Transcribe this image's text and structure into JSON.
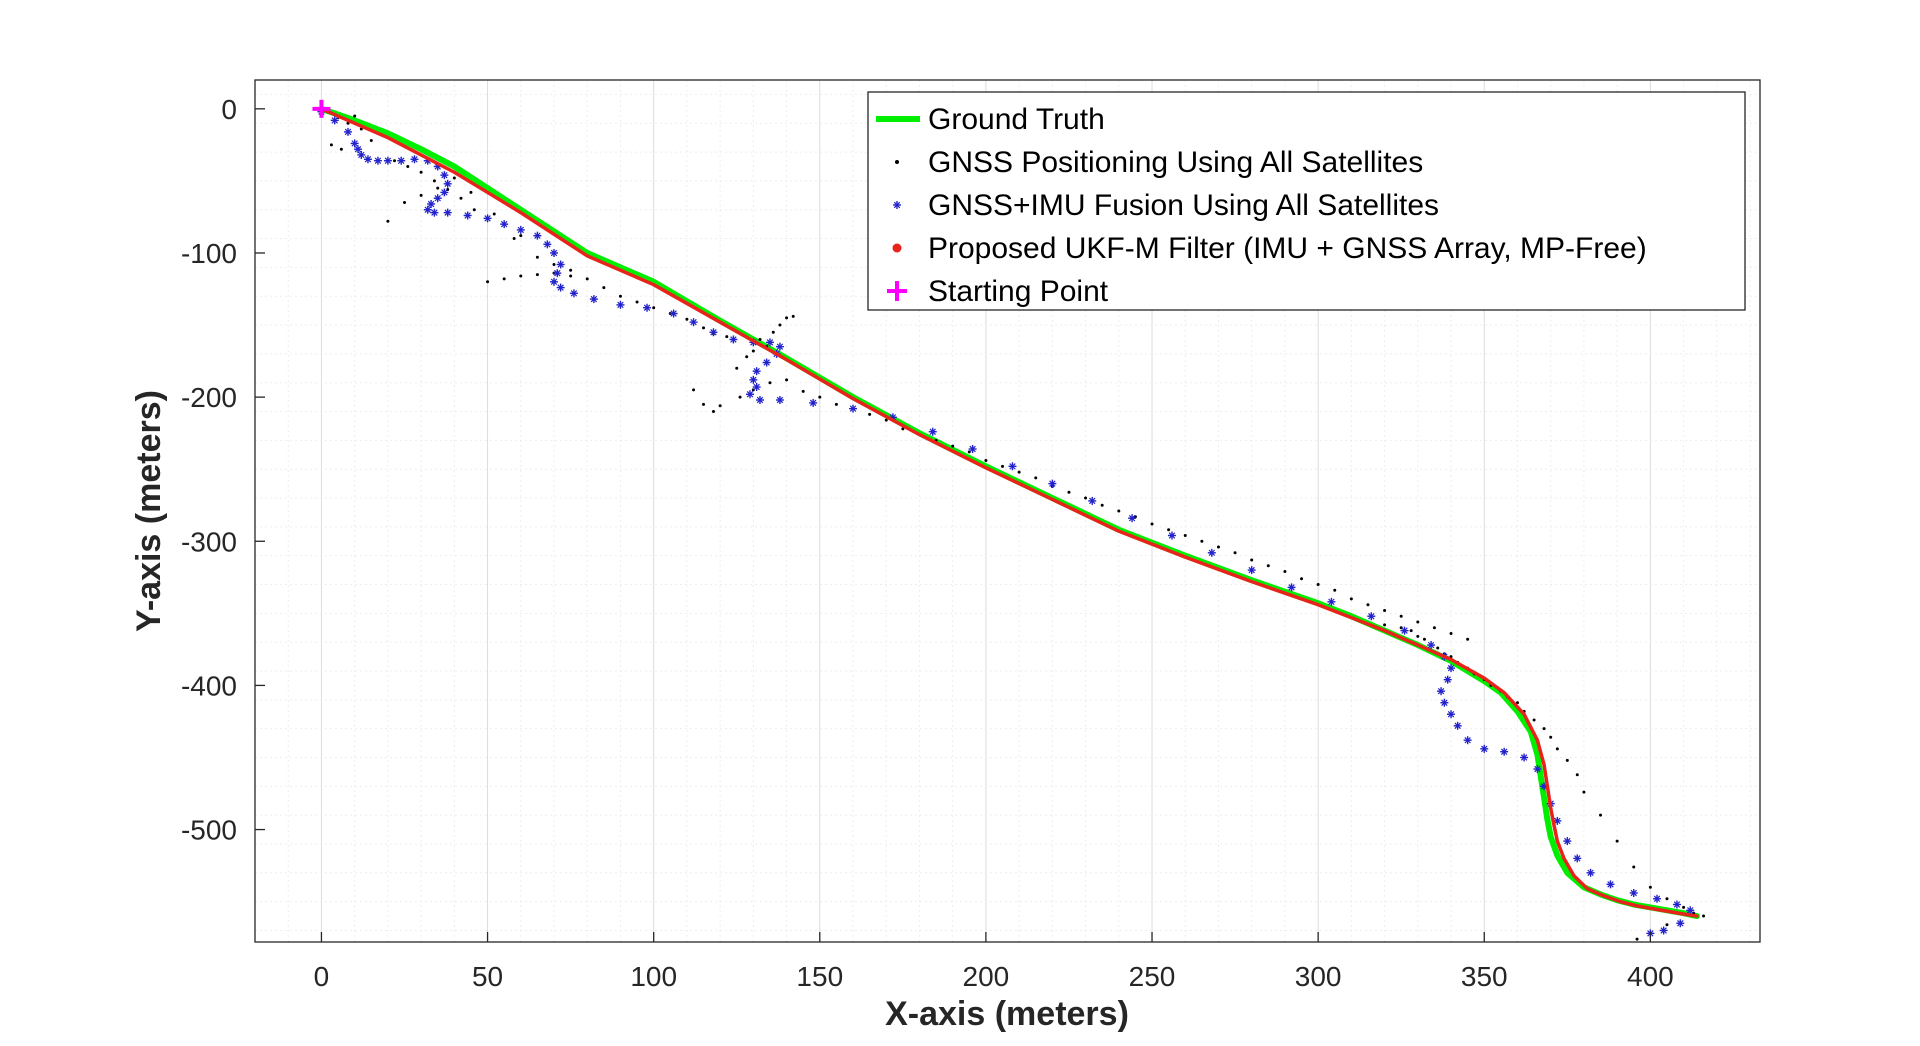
{
  "chart_data": {
    "type": "scatter",
    "title": "",
    "xlabel": "X-axis (meters)",
    "ylabel": "Y-axis (meters)",
    "xlim": [
      -20,
      433
    ],
    "ylim": [
      -578,
      20
    ],
    "xticks": [
      0,
      50,
      100,
      150,
      200,
      250,
      300,
      350,
      400
    ],
    "yticks": [
      0,
      -100,
      -200,
      -300,
      -400,
      -500
    ],
    "xtick_labels": [
      "0",
      "50",
      "100",
      "150",
      "200",
      "250",
      "300",
      "350",
      "400"
    ],
    "ytick_labels": [
      "0",
      "-100",
      "-200",
      "-300",
      "-400",
      "-500"
    ],
    "grid": true,
    "minor_grid": true,
    "legend_position": "top-right",
    "series": [
      {
        "name": "Ground Truth",
        "style": "line",
        "color": "#00ee00",
        "x": [
          0,
          10,
          20,
          30,
          40,
          50,
          60,
          70,
          80,
          100,
          120,
          140,
          160,
          180,
          200,
          220,
          240,
          260,
          280,
          300,
          310,
          320,
          330,
          340,
          350,
          355,
          360,
          364,
          366,
          367,
          368,
          369,
          370,
          372,
          375,
          380,
          385,
          390,
          395,
          400,
          405,
          410,
          414
        ],
        "y": [
          0,
          -8,
          -17,
          -28,
          -40,
          -55,
          -70,
          -85,
          -100,
          -120,
          -147,
          -173,
          -200,
          -225,
          -248,
          -270,
          -292,
          -310,
          -327,
          -343,
          -352,
          -362,
          -372,
          -383,
          -397,
          -405,
          -418,
          -432,
          -448,
          -463,
          -478,
          -493,
          -505,
          -518,
          -530,
          -540,
          -545,
          -549,
          -552,
          -554,
          -556,
          -558,
          -560
        ]
      },
      {
        "name": "GNSS Positioning Using All Satellites",
        "style": "dot",
        "color": "#000000",
        "x": [
          2,
          5,
          8,
          10,
          12,
          15,
          18,
          3,
          6,
          22,
          26,
          30,
          34,
          38,
          42,
          46,
          50,
          55,
          60,
          20,
          25,
          30,
          35,
          40,
          45,
          52,
          58,
          65,
          70,
          75,
          80,
          85,
          90,
          95,
          100,
          105,
          110,
          115,
          118,
          122,
          50,
          55,
          60,
          65,
          70,
          75,
          125,
          128,
          130,
          132,
          134,
          136,
          138,
          140,
          142,
          112,
          115,
          118,
          120,
          126,
          130,
          135,
          140,
          145,
          150,
          155,
          160,
          165,
          170,
          175,
          180,
          185,
          190,
          195,
          200,
          205,
          210,
          215,
          220,
          225,
          230,
          235,
          240,
          245,
          250,
          255,
          260,
          265,
          270,
          275,
          280,
          285,
          290,
          295,
          300,
          305,
          310,
          315,
          320,
          325,
          330,
          335,
          340,
          345,
          320,
          325,
          328,
          330,
          332,
          334,
          336,
          338,
          340,
          342,
          345,
          347,
          350,
          352,
          355,
          357,
          360,
          362,
          365,
          368,
          370,
          372,
          375,
          378,
          380,
          385,
          390,
          395,
          400,
          405,
          410,
          413,
          416,
          396,
          400,
          405
        ],
        "y": [
          -2,
          -6,
          -10,
          -5,
          -14,
          -22,
          -18,
          -25,
          -28,
          -36,
          -40,
          -44,
          -50,
          -56,
          -62,
          -70,
          -76,
          -80,
          -88,
          -78,
          -65,
          -60,
          -55,
          -48,
          -58,
          -73,
          -90,
          -103,
          -108,
          -112,
          -118,
          -124,
          -130,
          -134,
          -138,
          -142,
          -146,
          -152,
          -156,
          -158,
          -120,
          -118,
          -116,
          -115,
          -114,
          -116,
          -180,
          -172,
          -168,
          -160,
          -165,
          -155,
          -150,
          -145,
          -144,
          -195,
          -205,
          -210,
          -206,
          -200,
          -195,
          -190,
          -188,
          -196,
          -200,
          -205,
          -208,
          -212,
          -216,
          -222,
          -226,
          -230,
          -234,
          -238,
          -244,
          -248,
          -252,
          -256,
          -262,
          -266,
          -270,
          -275,
          -279,
          -283,
          -288,
          -292,
          -296,
          -300,
          -304,
          -308,
          -313,
          -317,
          -321,
          -326,
          -330,
          -334,
          -340,
          -344,
          -348,
          -352,
          -356,
          -360,
          -364,
          -368,
          -358,
          -360,
          -362,
          -366,
          -368,
          -372,
          -374,
          -378,
          -380,
          -384,
          -388,
          -392,
          -396,
          -400,
          -404,
          -408,
          -412,
          -418,
          -424,
          -430,
          -436,
          -444,
          -452,
          -462,
          -474,
          -490,
          -508,
          -526,
          -540,
          -548,
          -554,
          -558,
          -560,
          -576,
          -572,
          -566
        ]
      },
      {
        "name": "GNSS+IMU Fusion Using All Satellites",
        "style": "star",
        "color": "#2222cc",
        "x": [
          0,
          4,
          8,
          10,
          11,
          12,
          14,
          17,
          20,
          24,
          28,
          32,
          35,
          37,
          38,
          37,
          35,
          33,
          32,
          34,
          38,
          44,
          50,
          55,
          60,
          65,
          68,
          70,
          72,
          71,
          70,
          72,
          76,
          82,
          90,
          98,
          106,
          112,
          118,
          124,
          130,
          135,
          138,
          137,
          134,
          131,
          130,
          131,
          129,
          132,
          138,
          148,
          160,
          172,
          184,
          196,
          208,
          220,
          232,
          244,
          256,
          268,
          280,
          292,
          304,
          316,
          326,
          334,
          338,
          340,
          339,
          337,
          338,
          340,
          342,
          345,
          350,
          356,
          362,
          366,
          368,
          370,
          372,
          375,
          378,
          382,
          388,
          395,
          402,
          408,
          412,
          409,
          404,
          400
        ],
        "y": [
          -2,
          -8,
          -16,
          -24,
          -28,
          -32,
          -35,
          -36,
          -36,
          -36,
          -35,
          -36,
          -40,
          -46,
          -52,
          -58,
          -62,
          -66,
          -70,
          -72,
          -72,
          -74,
          -76,
          -80,
          -84,
          -88,
          -94,
          -100,
          -108,
          -114,
          -120,
          -124,
          -128,
          -132,
          -136,
          -138,
          -142,
          -148,
          -155,
          -160,
          -162,
          -162,
          -165,
          -170,
          -176,
          -182,
          -188,
          -193,
          -198,
          -202,
          -202,
          -204,
          -208,
          -214,
          -224,
          -236,
          -248,
          -260,
          -272,
          -284,
          -296,
          -308,
          -320,
          -332,
          -342,
          -352,
          -362,
          -372,
          -380,
          -388,
          -396,
          -404,
          -412,
          -420,
          -428,
          -438,
          -444,
          -446,
          -450,
          -458,
          -470,
          -482,
          -494,
          -508,
          -520,
          -530,
          -538,
          -544,
          -548,
          -552,
          -556,
          -565,
          -570,
          -572
        ]
      },
      {
        "name": "Proposed UKF-M Filter (IMU + GNSS Array, MP-Free)",
        "style": "redline",
        "color": "#e8231c",
        "x": [
          0,
          10,
          20,
          30,
          40,
          50,
          60,
          70,
          80,
          100,
          120,
          140,
          160,
          180,
          200,
          220,
          240,
          260,
          280,
          300,
          310,
          320,
          330,
          340,
          350,
          356,
          362,
          366,
          368,
          369,
          370,
          371,
          372,
          374,
          377,
          381,
          386,
          391,
          396,
          401,
          406,
          411,
          414
        ],
        "y": [
          0,
          -10,
          -20,
          -32,
          -44,
          -58,
          -72,
          -87,
          -102,
          -122,
          -148,
          -174,
          -201,
          -226,
          -249,
          -271,
          -293,
          -311,
          -328,
          -344,
          -353,
          -362,
          -372,
          -382,
          -395,
          -405,
          -420,
          -438,
          -455,
          -470,
          -485,
          -497,
          -508,
          -520,
          -532,
          -541,
          -546,
          -550,
          -553,
          -555,
          -557,
          -559,
          -560
        ]
      },
      {
        "name": "Starting Point",
        "style": "plus",
        "color": "#ff00ff",
        "x": [
          0
        ],
        "y": [
          0
        ]
      }
    ]
  }
}
